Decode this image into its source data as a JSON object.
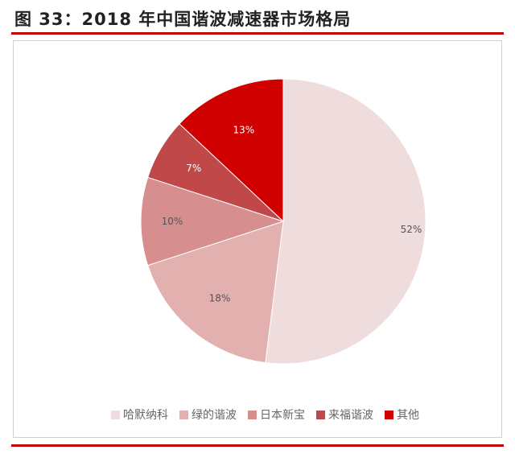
{
  "header": {
    "title": "图 33：2018 年中国谐波减速器市场格局"
  },
  "chart_data": {
    "type": "pie",
    "title": "图 33：2018 年中国谐波减速器市场格局",
    "legend_position": "bottom",
    "slices": [
      {
        "label": "哈默纳科",
        "value": 52,
        "display": "52%",
        "color": "#efdcdc"
      },
      {
        "label": "绿的谐波",
        "value": 18,
        "display": "18%",
        "color": "#e3b0b0"
      },
      {
        "label": "日本新宝",
        "value": 10,
        "display": "10%",
        "color": "#d68e8e"
      },
      {
        "label": "来福谐波",
        "value": 7,
        "display": "7%",
        "color": "#c04848"
      },
      {
        "label": "其他",
        "value": 13,
        "display": "13%",
        "color": "#d10000"
      }
    ]
  }
}
